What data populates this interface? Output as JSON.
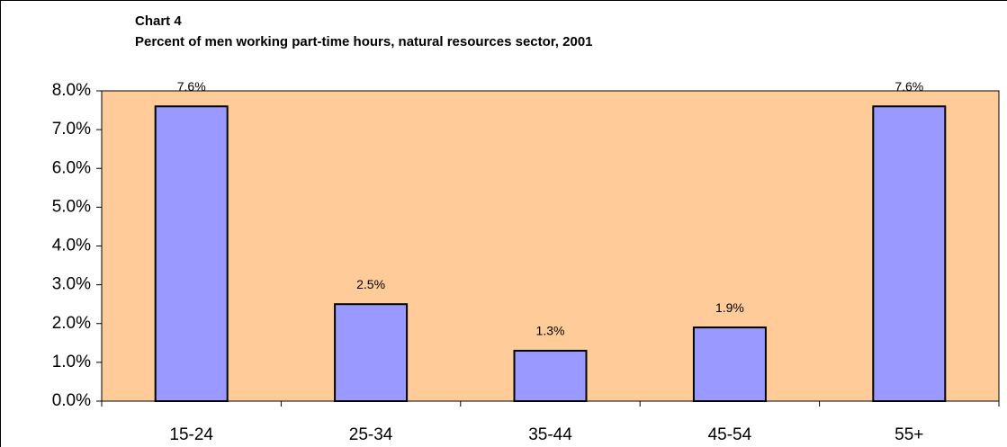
{
  "chart_data": {
    "type": "bar",
    "title": "Chart 4",
    "subtitle": "Percent of men working part-time hours, natural resources sector, 2001",
    "categories": [
      "15-24",
      "25-34",
      "35-44",
      "45-54",
      "55+"
    ],
    "values": [
      7.6,
      2.5,
      1.3,
      1.9,
      7.6
    ],
    "value_labels": [
      "7.6%",
      "2.5%",
      "1.3%",
      "1.9%",
      "7.6%"
    ],
    "color": "#9999ff",
    "plot_background": "#ffcc99",
    "ylim": [
      0,
      8
    ],
    "yticks": [
      {
        "value": 0,
        "label": "0.0%"
      },
      {
        "value": 1,
        "label": "1.0%"
      },
      {
        "value": 2,
        "label": "2.0%"
      },
      {
        "value": 3,
        "label": "3.0%"
      },
      {
        "value": 4,
        "label": "4.0%"
      },
      {
        "value": 5,
        "label": "5.0%"
      },
      {
        "value": 6,
        "label": "6.0%"
      },
      {
        "value": 7,
        "label": "7.0%"
      },
      {
        "value": 8,
        "label": "8.0%"
      }
    ],
    "grid": false
  }
}
